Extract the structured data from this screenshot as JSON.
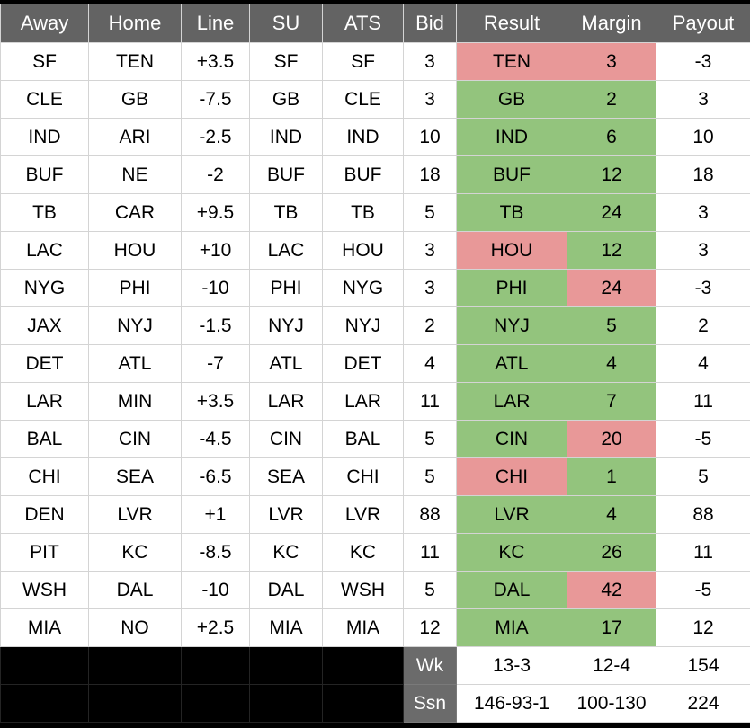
{
  "colors": {
    "green": "#93c47d",
    "red": "#e89898",
    "header_bg": "#636363",
    "footer_label_bg": "#6b6b6b",
    "gridline": "#d4d4d4",
    "black": "#000000"
  },
  "header": {
    "columns": [
      "Away",
      "Home",
      "Line",
      "SU",
      "ATS",
      "Bid",
      "Result",
      "Margin",
      "Payout"
    ]
  },
  "rows": [
    {
      "away": "SF",
      "home": "TEN",
      "line": "+3.5",
      "su": "SF",
      "ats": "SF",
      "bid": "3",
      "result": "TEN",
      "result_color": "red",
      "margin": "3",
      "margin_color": "red",
      "payout": "-3"
    },
    {
      "away": "CLE",
      "home": "GB",
      "line": "-7.5",
      "su": "GB",
      "ats": "CLE",
      "bid": "3",
      "result": "GB",
      "result_color": "green",
      "margin": "2",
      "margin_color": "green",
      "payout": "3"
    },
    {
      "away": "IND",
      "home": "ARI",
      "line": "-2.5",
      "su": "IND",
      "ats": "IND",
      "bid": "10",
      "result": "IND",
      "result_color": "green",
      "margin": "6",
      "margin_color": "green",
      "payout": "10"
    },
    {
      "away": "BUF",
      "home": "NE",
      "line": "-2",
      "su": "BUF",
      "ats": "BUF",
      "bid": "18",
      "result": "BUF",
      "result_color": "green",
      "margin": "12",
      "margin_color": "green",
      "payout": "18"
    },
    {
      "away": "TB",
      "home": "CAR",
      "line": "+9.5",
      "su": "TB",
      "ats": "TB",
      "bid": "5",
      "result": "TB",
      "result_color": "green",
      "margin": "24",
      "margin_color": "green",
      "payout": "3"
    },
    {
      "away": "LAC",
      "home": "HOU",
      "line": "+10",
      "su": "LAC",
      "ats": "HOU",
      "bid": "3",
      "result": "HOU",
      "result_color": "red",
      "margin": "12",
      "margin_color": "green",
      "payout": "3"
    },
    {
      "away": "NYG",
      "home": "PHI",
      "line": "-10",
      "su": "PHI",
      "ats": "NYG",
      "bid": "3",
      "result": "PHI",
      "result_color": "green",
      "margin": "24",
      "margin_color": "red",
      "payout": "-3"
    },
    {
      "away": "JAX",
      "home": "NYJ",
      "line": "-1.5",
      "su": "NYJ",
      "ats": "NYJ",
      "bid": "2",
      "result": "NYJ",
      "result_color": "green",
      "margin": "5",
      "margin_color": "green",
      "payout": "2"
    },
    {
      "away": "DET",
      "home": "ATL",
      "line": "-7",
      "su": "ATL",
      "ats": "DET",
      "bid": "4",
      "result": "ATL",
      "result_color": "green",
      "margin": "4",
      "margin_color": "green",
      "payout": "4"
    },
    {
      "away": "LAR",
      "home": "MIN",
      "line": "+3.5",
      "su": "LAR",
      "ats": "LAR",
      "bid": "11",
      "result": "LAR",
      "result_color": "green",
      "margin": "7",
      "margin_color": "green",
      "payout": "11"
    },
    {
      "away": "BAL",
      "home": "CIN",
      "line": "-4.5",
      "su": "CIN",
      "ats": "BAL",
      "bid": "5",
      "result": "CIN",
      "result_color": "green",
      "margin": "20",
      "margin_color": "red",
      "payout": "-5"
    },
    {
      "away": "CHI",
      "home": "SEA",
      "line": "-6.5",
      "su": "SEA",
      "ats": "CHI",
      "bid": "5",
      "result": "CHI",
      "result_color": "red",
      "margin": "1",
      "margin_color": "green",
      "payout": "5"
    },
    {
      "away": "DEN",
      "home": "LVR",
      "line": "+1",
      "su": "LVR",
      "ats": "LVR",
      "bid": "88",
      "result": "LVR",
      "result_color": "green",
      "margin": "4",
      "margin_color": "green",
      "payout": "88"
    },
    {
      "away": "PIT",
      "home": "KC",
      "line": "-8.5",
      "su": "KC",
      "ats": "KC",
      "bid": "11",
      "result": "KC",
      "result_color": "green",
      "margin": "26",
      "margin_color": "green",
      "payout": "11"
    },
    {
      "away": "WSH",
      "home": "DAL",
      "line": "-10",
      "su": "DAL",
      "ats": "WSH",
      "bid": "5",
      "result": "DAL",
      "result_color": "green",
      "margin": "42",
      "margin_color": "red",
      "payout": "-5"
    },
    {
      "away": "MIA",
      "home": "NO",
      "line": "+2.5",
      "su": "MIA",
      "ats": "MIA",
      "bid": "12",
      "result": "MIA",
      "result_color": "green",
      "margin": "17",
      "margin_color": "green",
      "payout": "12"
    }
  ],
  "footer": [
    {
      "label": "Wk",
      "result": "13-3",
      "margin": "12-4",
      "payout": "154"
    },
    {
      "label": "Ssn",
      "result": "146-93-1",
      "margin": "100-130",
      "payout": "224"
    }
  ]
}
